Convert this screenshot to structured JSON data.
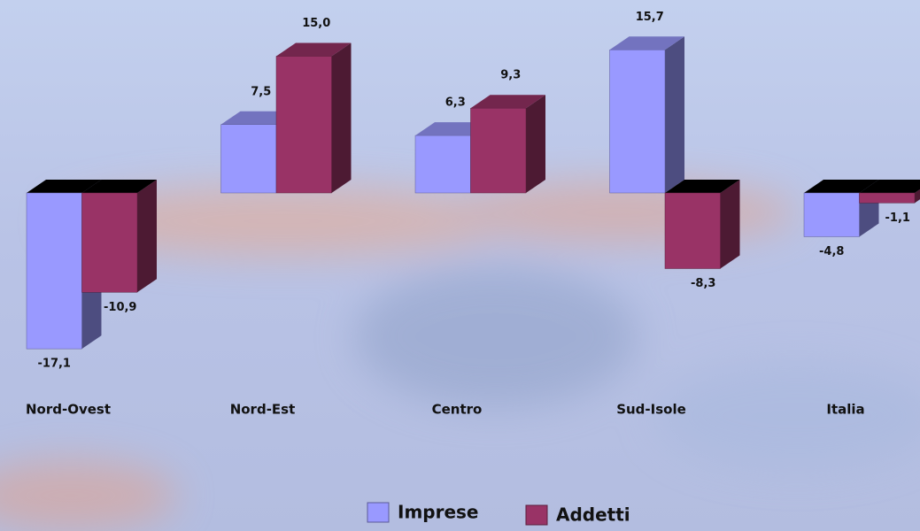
{
  "chart_data": {
    "type": "bar3d",
    "categories": [
      "Nord-Ovest",
      "Nord-Est",
      "Centro",
      "Sud-Isole",
      "Italia"
    ],
    "series": [
      {
        "name": "Imprese",
        "color": "#9999ff",
        "values": [
          -17.1,
          7.5,
          6.3,
          15.7,
          -4.8
        ],
        "value_labels": [
          "-17,1",
          "7,5",
          "6,3",
          "15,7",
          "-4,8"
        ]
      },
      {
        "name": "Addetti",
        "color": "#993366",
        "values": [
          -10.9,
          15.0,
          9.3,
          -8.3,
          -1.1
        ],
        "value_labels": [
          "-10,9",
          "15,0",
          "9,3",
          "-8,3",
          "-1,1"
        ]
      }
    ]
  }
}
